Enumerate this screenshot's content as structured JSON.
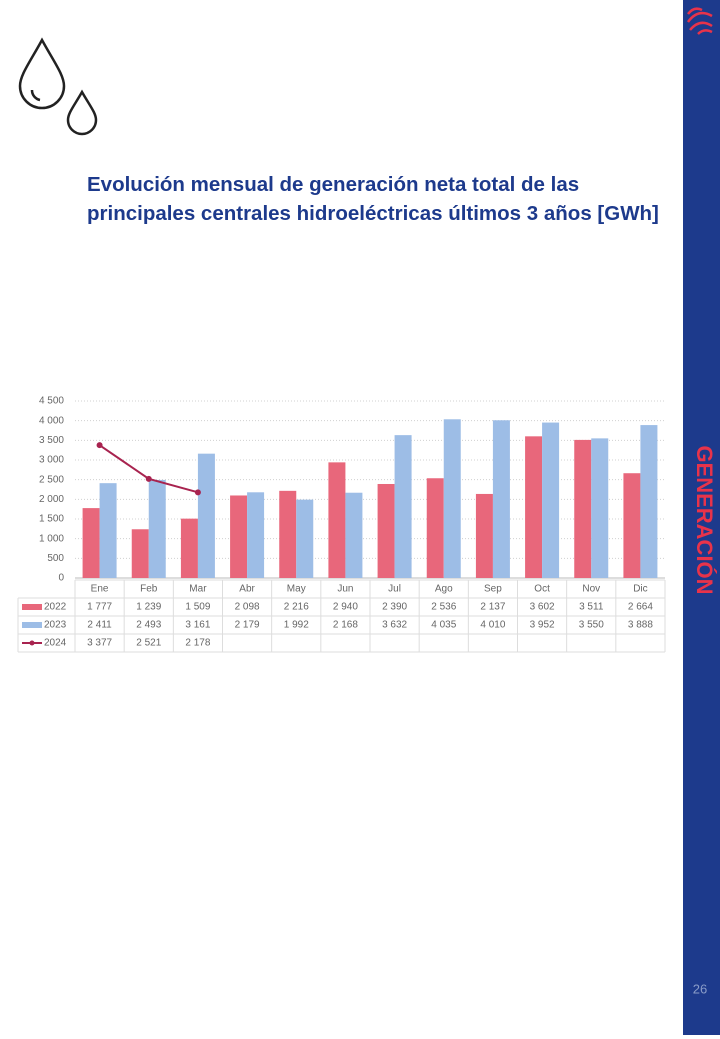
{
  "page": {
    "title": "Evolución mensual de generación neta total de las principales centrales hidroeléctricas últimos 3 años [GWh]",
    "section": "GENERACIÓN",
    "page_number": "26"
  },
  "chart_data": {
    "type": "bar",
    "categories": [
      "Ene",
      "Feb",
      "Mar",
      "Abr",
      "May",
      "Jun",
      "Jul",
      "Ago",
      "Sep",
      "Oct",
      "Nov",
      "Dic"
    ],
    "series": [
      {
        "name": "2022",
        "type": "bar",
        "color": "#e8677b",
        "values": [
          1777,
          1239,
          1509,
          2098,
          2216,
          2940,
          2390,
          2536,
          2137,
          3602,
          3511,
          2664
        ],
        "value_labels": [
          "1 777",
          "1 239",
          "1 509",
          "2 098",
          "2 216",
          "2 940",
          "2 390",
          "2 536",
          "2 137",
          "3 602",
          "3 511",
          "2 664"
        ]
      },
      {
        "name": "2023",
        "type": "bar",
        "color": "#9dbde6",
        "values": [
          2411,
          2493,
          3161,
          2179,
          1992,
          2168,
          3632,
          4035,
          4010,
          3952,
          3550,
          3888
        ],
        "value_labels": [
          "2 411",
          "2 493",
          "3 161",
          "2 179",
          "1 992",
          "2 168",
          "3 632",
          "4 035",
          "4 010",
          "3 952",
          "3 550",
          "3 888"
        ]
      },
      {
        "name": "2024",
        "type": "line",
        "color": "#a8234f",
        "values": [
          3377,
          2521,
          2178,
          null,
          null,
          null,
          null,
          null,
          null,
          null,
          null,
          null
        ],
        "value_labels": [
          "3 377",
          "2 521",
          "2 178",
          null,
          null,
          null,
          null,
          null,
          null,
          null,
          null,
          null
        ]
      }
    ],
    "ylim": [
      0,
      4500
    ],
    "yticks": [
      0,
      500,
      {
        "value": 1000,
        "label": "1 000"
      },
      {
        "value": 1500,
        "label": "1 500"
      },
      {
        "value": 2000,
        "label": "2 000"
      },
      {
        "value": 2500,
        "label": "2 500"
      },
      {
        "value": 3000,
        "label": "3 000"
      },
      {
        "value": 3500,
        "label": "3 500"
      },
      {
        "value": 4000,
        "label": "4 000"
      },
      {
        "value": 4500,
        "label": "4 500"
      }
    ],
    "grid": true
  }
}
